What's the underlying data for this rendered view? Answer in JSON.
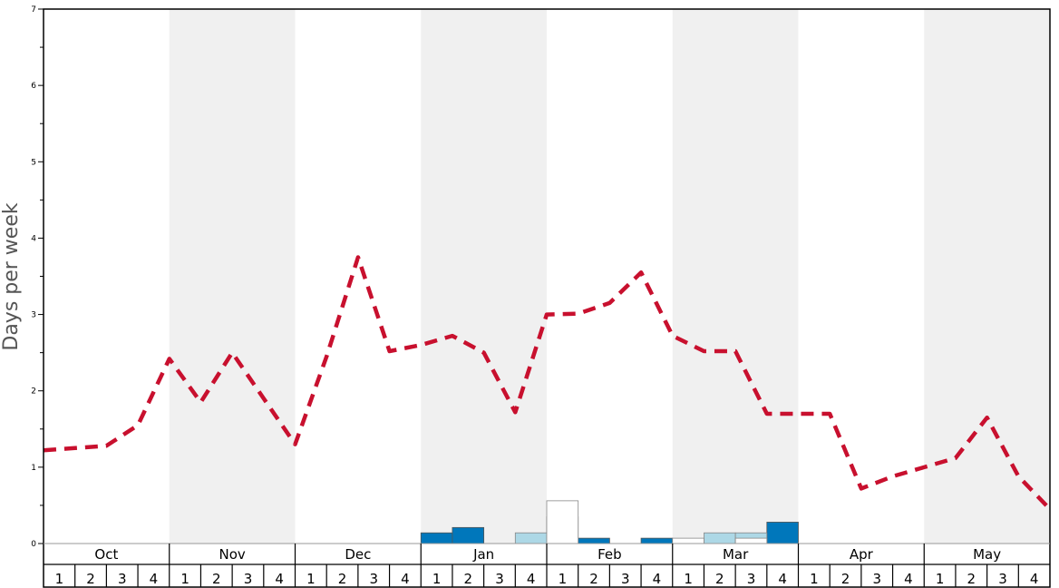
{
  "chart_data": {
    "type": "bar",
    "title": "",
    "xlabel": "",
    "ylabel": "Days per week",
    "ylim": [
      0,
      7
    ],
    "yticks": [
      0,
      1,
      2,
      3,
      4,
      5,
      6,
      7
    ],
    "months": [
      "Oct",
      "Nov",
      "Dec",
      "Jan",
      "Feb",
      "Mar",
      "Apr",
      "May"
    ],
    "week_labels": [
      "1",
      "2",
      "3",
      "4"
    ],
    "shaded_months": [
      "Nov",
      "Jan",
      "Mar",
      "May"
    ],
    "colors": {
      "dark_bar": "#0077bb",
      "light_bar": "#add8e6",
      "outline_bar": "#ffffff",
      "average_line": "#c8102e",
      "shade": "#f0f0f0"
    },
    "series": [
      {
        "kind": "bar",
        "style": "dark",
        "values": [
          0,
          0,
          0,
          0,
          0,
          0,
          0,
          0,
          0,
          0,
          0,
          0,
          0.14,
          0.21,
          0,
          0,
          0.35,
          0.07,
          0,
          0.07,
          0,
          0.07,
          0,
          0.28,
          0,
          0,
          0,
          0,
          0,
          0,
          0,
          0
        ]
      },
      {
        "kind": "bar",
        "style": "light",
        "values": [
          0,
          0,
          0,
          0,
          0,
          0,
          0,
          0,
          0,
          0,
          0,
          0,
          0,
          0,
          0,
          0.14,
          0,
          0,
          0,
          0,
          0,
          0.14,
          0.14,
          0,
          0,
          0,
          0,
          0,
          0,
          0,
          0,
          0
        ]
      },
      {
        "kind": "bar",
        "style": "outline",
        "values": [
          0,
          0,
          0,
          0,
          0,
          0,
          0,
          0,
          0,
          0,
          0,
          0,
          0,
          0,
          0,
          0,
          0.56,
          0,
          0,
          0,
          0.07,
          0,
          0.07,
          0,
          0,
          0,
          0,
          0,
          0,
          0,
          0,
          0
        ]
      },
      {
        "kind": "line",
        "style": "dashed",
        "values": [
          1.22,
          1.25,
          1.28,
          1.55,
          2.42,
          1.85,
          2.5,
          1.9,
          1.3,
          2.45,
          3.75,
          2.52,
          2.6,
          2.72,
          2.5,
          1.72,
          3.0,
          3.01,
          3.15,
          3.55,
          2.72,
          2.52,
          2.52,
          1.7,
          1.7,
          1.7,
          0.72,
          0.88,
          1.0,
          1.12,
          1.65,
          0.88
        ]
      }
    ],
    "line_end_value": 0.45
  }
}
